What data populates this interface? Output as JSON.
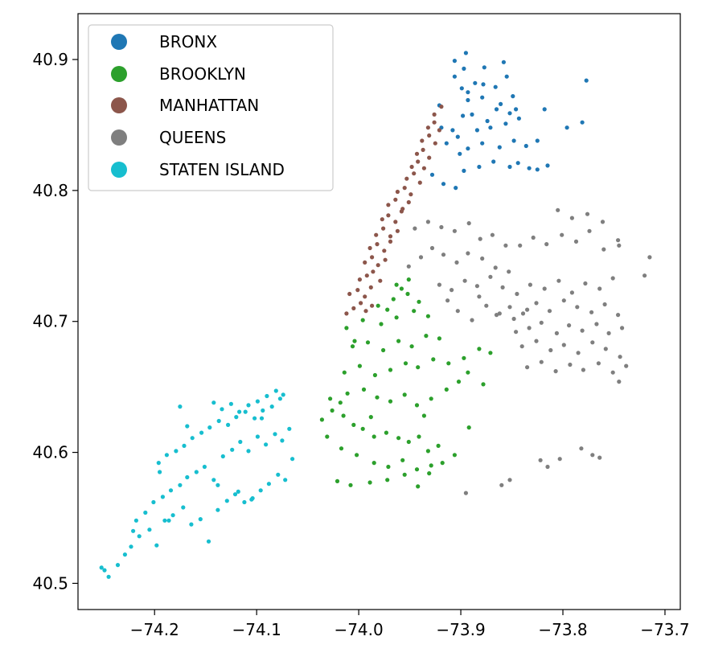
{
  "chart_data": {
    "type": "scatter",
    "title": "",
    "xlabel": "",
    "ylabel": "",
    "xlim": [
      -74.275,
      -73.685
    ],
    "ylim": [
      40.48,
      40.935
    ],
    "xticks": [
      -74.2,
      -74.1,
      -74.0,
      -73.9,
      -73.8,
      -73.7
    ],
    "xtick_labels": [
      "−74.2",
      "−74.1",
      "−74.0",
      "−73.9",
      "−73.8",
      "−73.7"
    ],
    "yticks": [
      40.5,
      40.6,
      40.7,
      40.8,
      40.9
    ],
    "ytick_labels": [
      "40.5",
      "40.6",
      "40.7",
      "40.8",
      "40.9"
    ],
    "grid": false,
    "legend_position": "upper-left",
    "series": [
      {
        "name": "BRONX",
        "color": "#1f77b4",
        "x": [
          -73.928,
          -73.917,
          -73.905,
          -73.897,
          -73.882,
          -73.868,
          -73.852,
          -73.844,
          -73.833,
          -73.825,
          -73.815,
          -73.901,
          -73.893,
          -73.879,
          -73.862,
          -73.848,
          -73.836,
          -73.884,
          -73.903,
          -73.914,
          -73.871,
          -73.856,
          -73.898,
          -73.889,
          -73.874,
          -73.865,
          -73.852,
          -73.843,
          -73.919,
          -73.908,
          -73.893,
          -73.879,
          -73.861,
          -73.846,
          -73.921,
          -73.899,
          -73.886,
          -73.866,
          -73.849,
          -73.906,
          -73.897,
          -73.877,
          -73.858,
          -73.906,
          -73.895,
          -73.878,
          -73.893,
          -73.855,
          -73.825,
          -73.796,
          -73.781,
          -73.777,
          -73.818
        ],
        "y": [
          40.812,
          40.805,
          40.802,
          40.815,
          40.818,
          40.822,
          40.818,
          40.821,
          40.817,
          40.816,
          40.819,
          40.828,
          40.832,
          40.836,
          40.833,
          40.838,
          40.834,
          40.846,
          40.841,
          40.836,
          40.848,
          40.851,
          40.857,
          40.858,
          40.853,
          40.862,
          40.859,
          40.855,
          40.848,
          40.846,
          40.869,
          40.871,
          40.866,
          40.862,
          40.865,
          40.878,
          40.882,
          40.879,
          40.872,
          40.887,
          40.893,
          40.894,
          40.898,
          40.899,
          40.905,
          40.881,
          40.875,
          40.887,
          40.838,
          40.848,
          40.852,
          40.884,
          40.862
        ]
      },
      {
        "name": "BROOKLYN",
        "color": "#2ca02c",
        "x": [
          -74.036,
          -74.026,
          -74.015,
          -74.005,
          -73.996,
          -73.985,
          -73.973,
          -73.961,
          -73.951,
          -73.941,
          -73.932,
          -73.922,
          -74.028,
          -74.011,
          -73.995,
          -73.982,
          -73.969,
          -73.955,
          -73.943,
          -73.929,
          -73.914,
          -73.902,
          -73.893,
          -74.031,
          -74.017,
          -74.002,
          -73.985,
          -73.971,
          -73.957,
          -73.943,
          -73.931,
          -73.918,
          -73.906,
          -73.892,
          -73.878,
          -74.014,
          -73.999,
          -73.984,
          -73.969,
          -73.954,
          -73.942,
          -73.927,
          -73.912,
          -73.897,
          -73.882,
          -73.871,
          -74.006,
          -73.991,
          -73.976,
          -73.961,
          -73.948,
          -73.934,
          -73.921,
          -74.021,
          -74.008,
          -73.989,
          -73.972,
          -73.955,
          -73.942,
          -73.929,
          -74.012,
          -73.996,
          -73.978,
          -73.963,
          -73.946,
          -73.932,
          -73.981,
          -73.966,
          -73.952,
          -73.941,
          -73.958,
          -73.951,
          -73.963,
          -73.972,
          -74.018,
          -73.988,
          -73.936,
          -74.004
        ],
        "y": [
          40.625,
          40.632,
          40.628,
          40.621,
          40.618,
          40.612,
          40.615,
          40.611,
          40.608,
          40.612,
          40.601,
          40.605,
          40.641,
          40.645,
          40.648,
          40.642,
          40.639,
          40.644,
          40.636,
          40.641,
          40.648,
          40.654,
          40.661,
          40.612,
          40.603,
          40.598,
          40.592,
          40.589,
          40.594,
          40.587,
          40.584,
          40.592,
          40.598,
          40.619,
          40.652,
          40.661,
          40.666,
          40.659,
          40.663,
          40.668,
          40.665,
          40.671,
          40.668,
          40.672,
          40.679,
          40.676,
          40.681,
          40.684,
          40.678,
          40.685,
          40.681,
          40.689,
          40.687,
          40.578,
          40.575,
          40.577,
          40.579,
          40.583,
          40.574,
          40.59,
          40.695,
          40.701,
          40.698,
          40.703,
          40.708,
          40.704,
          40.712,
          40.717,
          40.721,
          40.715,
          40.725,
          40.732,
          40.728,
          40.709,
          40.638,
          40.627,
          40.628,
          40.685
        ]
      },
      {
        "name": "MANHATTAN",
        "color": "#8c564b",
        "x": [
          -74.012,
          -74.005,
          -73.998,
          -73.993,
          -73.987,
          -74.009,
          -74.001,
          -73.994,
          -73.988,
          -73.999,
          -73.992,
          -73.986,
          -73.979,
          -73.994,
          -73.987,
          -73.981,
          -73.974,
          -73.989,
          -73.982,
          -73.975,
          -73.969,
          -73.983,
          -73.976,
          -73.969,
          -73.962,
          -73.977,
          -73.971,
          -73.964,
          -73.958,
          -73.971,
          -73.964,
          -73.957,
          -73.951,
          -73.962,
          -73.955,
          -73.949,
          -73.953,
          -73.946,
          -73.94,
          -73.948,
          -73.942,
          -73.936,
          -73.943,
          -73.937,
          -73.931,
          -73.938,
          -73.931,
          -73.925,
          -73.932,
          -73.926,
          -73.921,
          -73.926,
          -73.919
        ],
        "y": [
          40.706,
          40.71,
          40.714,
          40.708,
          40.712,
          40.721,
          40.724,
          40.719,
          40.726,
          40.732,
          40.735,
          40.738,
          40.731,
          40.745,
          40.749,
          40.743,
          40.747,
          40.756,
          40.759,
          40.754,
          40.761,
          40.766,
          40.771,
          40.765,
          40.769,
          40.778,
          40.781,
          40.776,
          40.784,
          40.789,
          40.793,
          40.786,
          40.791,
          40.799,
          40.802,
          40.797,
          40.809,
          40.813,
          40.806,
          40.818,
          40.822,
          40.817,
          40.828,
          40.831,
          40.825,
          40.838,
          40.842,
          40.836,
          40.848,
          40.852,
          40.846,
          40.858,
          40.864
        ]
      },
      {
        "name": "QUEENS",
        "color": "#7f7f7f",
        "x": [
          -73.951,
          -73.939,
          -73.928,
          -73.917,
          -73.904,
          -73.893,
          -73.879,
          -73.866,
          -73.853,
          -73.945,
          -73.932,
          -73.919,
          -73.906,
          -73.892,
          -73.881,
          -73.869,
          -73.856,
          -73.921,
          -73.909,
          -73.896,
          -73.884,
          -73.871,
          -73.859,
          -73.845,
          -73.832,
          -73.818,
          -73.804,
          -73.791,
          -73.778,
          -73.764,
          -73.751,
          -73.865,
          -73.852,
          -73.839,
          -73.826,
          -73.813,
          -73.799,
          -73.786,
          -73.772,
          -73.759,
          -73.746,
          -73.846,
          -73.833,
          -73.821,
          -73.806,
          -73.794,
          -73.781,
          -73.767,
          -73.755,
          -73.742,
          -73.84,
          -73.826,
          -73.812,
          -73.799,
          -73.785,
          -73.771,
          -73.758,
          -73.744,
          -73.835,
          -73.821,
          -73.807,
          -73.793,
          -73.78,
          -73.765,
          -73.751,
          -73.738,
          -73.842,
          -73.829,
          -73.816,
          -73.801,
          -73.787,
          -73.774,
          -73.76,
          -73.746,
          -73.805,
          -73.791,
          -73.776,
          -73.761,
          -73.715,
          -73.72,
          -73.745,
          -73.745,
          -73.903,
          -73.889,
          -73.875,
          -73.862,
          -73.848,
          -73.835,
          -73.822,
          -73.815,
          -73.803,
          -73.782,
          -73.771,
          -73.764,
          -73.86,
          -73.852,
          -73.895,
          -73.913,
          -73.882
        ],
        "y": [
          40.742,
          40.749,
          40.756,
          40.751,
          40.745,
          40.752,
          40.748,
          40.741,
          40.738,
          40.771,
          40.776,
          40.772,
          40.769,
          40.775,
          40.763,
          40.766,
          40.758,
          40.728,
          40.724,
          40.731,
          40.727,
          40.734,
          40.726,
          40.721,
          40.728,
          40.725,
          40.731,
          40.722,
          40.729,
          40.725,
          40.733,
          40.705,
          40.711,
          40.706,
          40.714,
          40.708,
          40.716,
          40.711,
          40.707,
          40.713,
          40.705,
          40.692,
          40.695,
          40.699,
          40.691,
          40.697,
          40.693,
          40.698,
          40.691,
          40.695,
          40.681,
          40.685,
          40.678,
          40.682,
          40.676,
          40.684,
          40.679,
          40.673,
          40.665,
          40.669,
          40.662,
          40.667,
          40.663,
          40.668,
          40.661,
          40.666,
          40.758,
          40.764,
          40.759,
          40.766,
          40.761,
          40.769,
          40.755,
          40.762,
          40.785,
          40.779,
          40.782,
          40.776,
          40.749,
          40.735,
          40.758,
          40.654,
          40.708,
          40.701,
          40.712,
          40.706,
          40.702,
          40.709,
          40.594,
          40.589,
          40.595,
          40.603,
          40.598,
          40.596,
          40.575,
          40.579,
          40.569,
          40.716,
          40.719
        ]
      },
      {
        "name": "STATEN ISLAND",
        "color": "#17becf",
        "x": [
          -74.252,
          -74.245,
          -74.236,
          -74.223,
          -74.215,
          -74.205,
          -74.198,
          -74.19,
          -74.182,
          -74.172,
          -74.164,
          -74.155,
          -74.147,
          -74.138,
          -74.129,
          -74.121,
          -74.112,
          -74.104,
          -74.096,
          -74.088,
          -74.079,
          -74.072,
          -74.065,
          -74.218,
          -74.209,
          -74.201,
          -74.192,
          -74.184,
          -74.175,
          -74.168,
          -74.159,
          -74.151,
          -74.142,
          -74.133,
          -74.124,
          -74.116,
          -74.108,
          -74.099,
          -74.091,
          -74.082,
          -74.075,
          -74.068,
          -74.196,
          -74.188,
          -74.179,
          -74.171,
          -74.163,
          -74.154,
          -74.146,
          -74.137,
          -74.128,
          -74.12,
          -74.111,
          -74.102,
          -74.094,
          -74.085,
          -74.077,
          -74.142,
          -74.134,
          -74.125,
          -74.117,
          -74.108,
          -74.099,
          -74.09,
          -74.081,
          -74.074,
          -74.249,
          -74.229,
          -74.221,
          -74.195,
          -74.168,
          -74.175,
          -74.186,
          -74.138,
          -74.118,
          -74.105,
          -74.095
        ],
        "y": [
          40.512,
          40.505,
          40.514,
          40.528,
          40.536,
          40.541,
          40.529,
          40.548,
          40.552,
          40.558,
          40.545,
          40.549,
          40.532,
          40.556,
          40.563,
          40.568,
          40.562,
          40.565,
          40.571,
          40.576,
          40.583,
          40.579,
          40.595,
          40.548,
          40.554,
          40.562,
          40.566,
          40.571,
          40.575,
          40.581,
          40.585,
          40.589,
          40.579,
          40.597,
          40.602,
          40.608,
          40.601,
          40.612,
          40.606,
          40.614,
          40.609,
          40.618,
          40.592,
          40.598,
          40.601,
          40.605,
          40.611,
          40.615,
          40.619,
          40.624,
          40.621,
          40.627,
          40.631,
          40.626,
          40.632,
          40.635,
          40.641,
          40.638,
          40.633,
          40.637,
          40.631,
          40.636,
          40.639,
          40.643,
          40.647,
          40.644,
          40.51,
          40.522,
          40.54,
          40.585,
          40.62,
          40.635,
          40.548,
          40.575,
          40.57,
          40.564,
          40.626
        ]
      }
    ]
  }
}
